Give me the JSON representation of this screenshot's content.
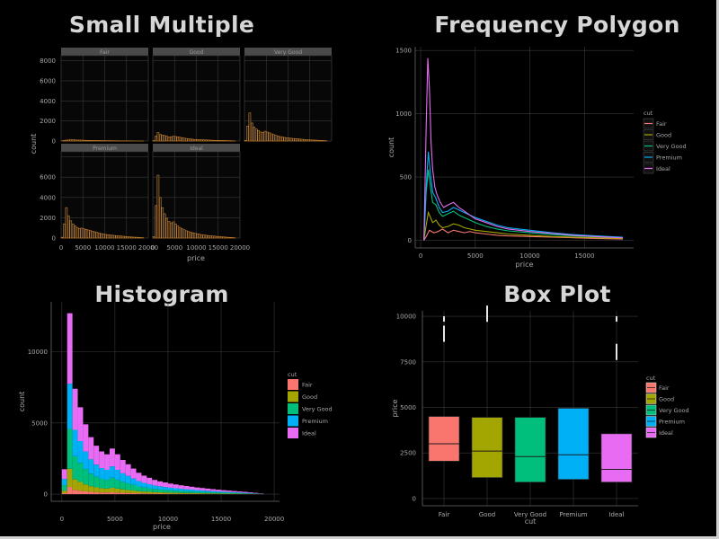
{
  "colors": {
    "Fair": "#f8766d",
    "Good": "#a3a500",
    "Very Good": "#00bf7d",
    "Premium": "#00b0f6",
    "Ideal": "#e76bf3",
    "orange": "#e8912d"
  },
  "chart_data": [
    {
      "type": "bar",
      "title": "Small Multiple",
      "xlabel": "price",
      "ylabel": "count",
      "facets": [
        "Fair",
        "Good",
        "Very Good",
        "Premium",
        "Ideal"
      ],
      "x_ticks": [
        "0",
        "5000",
        "10000",
        "15000",
        "20000"
      ],
      "y_ticks_top": [
        "0",
        "2000",
        "4000",
        "6000",
        "8000"
      ],
      "y_ticks_bottom": [
        "0",
        "2000",
        "4000",
        "6000"
      ],
      "ylim": [
        0,
        8500
      ],
      "xlim": [
        0,
        20000
      ],
      "bin_width": 500,
      "series": [
        {
          "name": "Fair",
          "values": [
            10,
            60,
            90,
            110,
            130,
            120,
            110,
            100,
            95,
            90,
            80,
            70,
            65,
            60,
            55,
            50,
            45,
            42,
            40,
            38,
            35,
            33,
            30,
            28,
            26,
            24,
            22,
            20,
            18,
            16,
            14,
            12,
            10,
            8,
            6,
            4,
            2,
            1
          ]
        },
        {
          "name": "Good",
          "values": [
            40,
            500,
            850,
            650,
            600,
            550,
            480,
            420,
            430,
            480,
            460,
            420,
            380,
            340,
            300,
            260,
            230,
            200,
            180,
            160,
            150,
            140,
            130,
            120,
            110,
            100,
            90,
            80,
            70,
            60,
            55,
            50,
            45,
            40,
            35,
            30,
            20,
            10
          ]
        },
        {
          "name": "Very Good",
          "values": [
            70,
            1500,
            2800,
            1800,
            1400,
            1200,
            1050,
            900,
            850,
            980,
            900,
            820,
            720,
            640,
            560,
            500,
            440,
            400,
            360,
            330,
            300,
            280,
            260,
            240,
            220,
            200,
            180,
            160,
            140,
            120,
            110,
            100,
            90,
            80,
            70,
            60,
            40,
            20
          ]
        },
        {
          "name": "Premium",
          "values": [
            80,
            1400,
            3000,
            2200,
            1700,
            1400,
            1200,
            1050,
            950,
            980,
            920,
            860,
            800,
            740,
            680,
            620,
            560,
            500,
            440,
            400,
            360,
            330,
            300,
            280,
            260,
            240,
            220,
            200,
            180,
            160,
            140,
            120,
            100,
            90,
            80,
            70,
            50,
            30
          ]
        },
        {
          "name": "Ideal",
          "values": [
            150,
            3200,
            6200,
            4000,
            3000,
            2400,
            1950,
            1650,
            1500,
            1600,
            1400,
            1200,
            1050,
            920,
            820,
            720,
            640,
            580,
            520,
            470,
            420,
            380,
            340,
            310,
            280,
            250,
            230,
            210,
            190,
            170,
            150,
            130,
            110,
            95,
            80,
            65,
            45,
            25
          ]
        }
      ]
    },
    {
      "type": "line",
      "title": "Frequency Polygon",
      "xlabel": "price",
      "ylabel": "count",
      "legend_title": "cut",
      "legend": [
        "Fair",
        "Good",
        "Very Good",
        "Premium",
        "Ideal"
      ],
      "legend_position": "right",
      "x_ticks": [
        "0",
        "5000",
        "10000",
        "15000"
      ],
      "y_ticks": [
        "0",
        "500",
        "1000",
        "1500"
      ],
      "xlim": [
        -500,
        19500
      ],
      "ylim": [
        -60,
        1530
      ],
      "series": [
        {
          "name": "Fair",
          "x": [
            300,
            500,
            800,
            1200,
            1600,
            2000,
            2500,
            3000,
            3500,
            4000,
            4500,
            5000,
            6000,
            7000,
            8000,
            10000,
            12000,
            14000,
            16000,
            18500
          ],
          "y": [
            0,
            30,
            80,
            60,
            70,
            90,
            60,
            80,
            70,
            60,
            70,
            60,
            50,
            40,
            35,
            30,
            25,
            20,
            15,
            10
          ]
        },
        {
          "name": "Good",
          "x": [
            300,
            500,
            700,
            900,
            1100,
            1400,
            1700,
            2000,
            2500,
            3000,
            3500,
            4000,
            4500,
            5000,
            6000,
            7000,
            8000,
            10000,
            12000,
            14000,
            16000,
            18500
          ],
          "y": [
            0,
            120,
            220,
            180,
            140,
            160,
            120,
            100,
            110,
            130,
            120,
            100,
            90,
            80,
            70,
            60,
            50,
            40,
            30,
            25,
            20,
            15
          ]
        },
        {
          "name": "Very Good",
          "x": [
            300,
            500,
            700,
            900,
            1100,
            1400,
            1700,
            2000,
            2500,
            3000,
            3500,
            4000,
            4500,
            5000,
            6000,
            7000,
            8000,
            10000,
            12000,
            14000,
            16000,
            18500
          ],
          "y": [
            0,
            380,
            560,
            420,
            300,
            280,
            220,
            190,
            210,
            230,
            200,
            180,
            160,
            140,
            110,
            90,
            75,
            60,
            45,
            35,
            28,
            20
          ]
        },
        {
          "name": "Premium",
          "x": [
            300,
            500,
            700,
            900,
            1100,
            1400,
            1700,
            2000,
            2500,
            3000,
            3500,
            4000,
            4500,
            5000,
            6000,
            7000,
            8000,
            10000,
            12000,
            14000,
            16000,
            18500
          ],
          "y": [
            0,
            420,
            700,
            520,
            380,
            330,
            260,
            220,
            230,
            260,
            240,
            220,
            200,
            180,
            150,
            120,
            100,
            80,
            60,
            45,
            35,
            25
          ]
        },
        {
          "name": "Ideal",
          "x": [
            300,
            500,
            650,
            800,
            950,
            1100,
            1300,
            1500,
            1800,
            2100,
            2500,
            3000,
            3500,
            4000,
            4500,
            5000,
            6000,
            7000,
            8000,
            10000,
            12000,
            14000,
            16000,
            18500
          ],
          "y": [
            0,
            900,
            1440,
            1200,
            780,
            560,
            420,
            360,
            300,
            260,
            280,
            300,
            260,
            230,
            200,
            170,
            140,
            110,
            90,
            70,
            55,
            40,
            30,
            20
          ]
        }
      ]
    },
    {
      "type": "bar",
      "stacked": true,
      "title": "Histogram",
      "xlabel": "price",
      "ylabel": "count",
      "legend_title": "cut",
      "legend": [
        "Fair",
        "Good",
        "Very Good",
        "Premium",
        "Ideal"
      ],
      "legend_position": "right",
      "x_ticks": [
        "0",
        "5000",
        "10000",
        "15000",
        "20000"
      ],
      "y_ticks": [
        "0",
        "5000",
        "10000"
      ],
      "xlim": [
        -1000,
        20500
      ],
      "ylim": [
        -500,
        13500
      ],
      "bin_width": 500,
      "totals": [
        1750,
        12700,
        7400,
        6100,
        4900,
        4000,
        3400,
        3000,
        2800,
        3200,
        2800,
        2400,
        2100,
        1800,
        1500,
        1300,
        1150,
        1000,
        900,
        820,
        740,
        680,
        620,
        570,
        520,
        470,
        430,
        390,
        350,
        310,
        280,
        250,
        220,
        190,
        160,
        130,
        90,
        50
      ],
      "fractions": {
        "Fair": 0.04,
        "Good": 0.1,
        "Very Good": 0.22,
        "Premium": 0.25,
        "Ideal": 0.39
      }
    },
    {
      "type": "box",
      "title": "Box Plot",
      "xlabel": "cut",
      "ylabel": "price",
      "legend_title": "cut",
      "legend": [
        "Fair",
        "Good",
        "Very Good",
        "Premium",
        "Ideal"
      ],
      "legend_position": "right",
      "categories": [
        "Fair",
        "Good",
        "Very Good",
        "Premium",
        "Ideal"
      ],
      "y_ticks": [
        "0",
        "2500",
        "5000",
        "7500",
        "10000"
      ],
      "ylim": [
        -400,
        10300
      ],
      "boxes": [
        {
          "name": "Fair",
          "q1": 2050,
          "median": 3000,
          "q3": 4500,
          "outliers": [
            8600,
            10000
          ]
        },
        {
          "name": "Good",
          "q1": 1150,
          "median": 2600,
          "q3": 4450,
          "outliers": [
            9700,
            10000
          ]
        },
        {
          "name": "Very Good",
          "q1": 900,
          "median": 2300,
          "q3": 4450,
          "outliers": []
        },
        {
          "name": "Premium",
          "q1": 1050,
          "median": 2400,
          "q3": 4950,
          "outliers": []
        },
        {
          "name": "Ideal",
          "q1": 900,
          "median": 1600,
          "q3": 3550,
          "outliers": [
            7600,
            10000
          ]
        }
      ]
    }
  ]
}
